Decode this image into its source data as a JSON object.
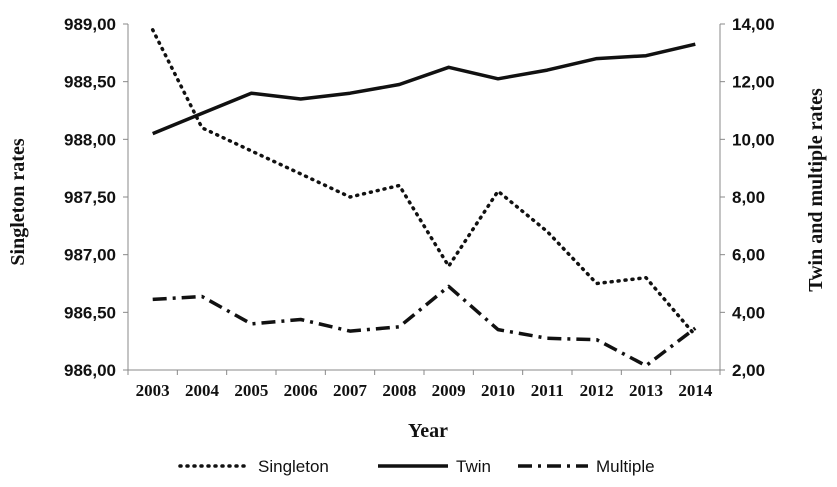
{
  "chart_data": {
    "type": "line",
    "categories": [
      "2003",
      "2004",
      "2005",
      "2006",
      "2007",
      "2008",
      "2009",
      "2010",
      "2011",
      "2012",
      "2013",
      "2014"
    ],
    "xlabel": "Year",
    "ylabel": "Singleton rates",
    "y2label": "Twin and multiple rates",
    "ylim": [
      986.0,
      989.0
    ],
    "y2lim": [
      2.0,
      14.0
    ],
    "y_ticks": [
      "986,00",
      "986,50",
      "987,00",
      "987,50",
      "988,00",
      "988,50",
      "989,00"
    ],
    "y2_ticks": [
      "2,00",
      "4,00",
      "6,00",
      "8,00",
      "10,00",
      "12,00",
      "14,00"
    ],
    "grid": false,
    "legend_position": "bottom",
    "series": [
      {
        "name": "Singleton",
        "axis": "left",
        "style": "dotted",
        "values": [
          988.95,
          988.1,
          987.9,
          987.7,
          987.5,
          987.6,
          986.9,
          987.55,
          987.2,
          986.75,
          986.8,
          986.3
        ]
      },
      {
        "name": "Twin",
        "axis": "right",
        "style": "solid",
        "values": [
          10.2,
          10.9,
          11.6,
          11.4,
          11.6,
          11.9,
          12.5,
          12.1,
          12.4,
          12.8,
          12.9,
          13.3
        ]
      },
      {
        "name": "Multiple",
        "axis": "right",
        "style": "dashdot",
        "values": [
          4.45,
          4.55,
          3.6,
          3.75,
          3.35,
          3.5,
          4.9,
          3.4,
          3.1,
          3.05,
          2.15,
          3.45
        ]
      }
    ]
  }
}
